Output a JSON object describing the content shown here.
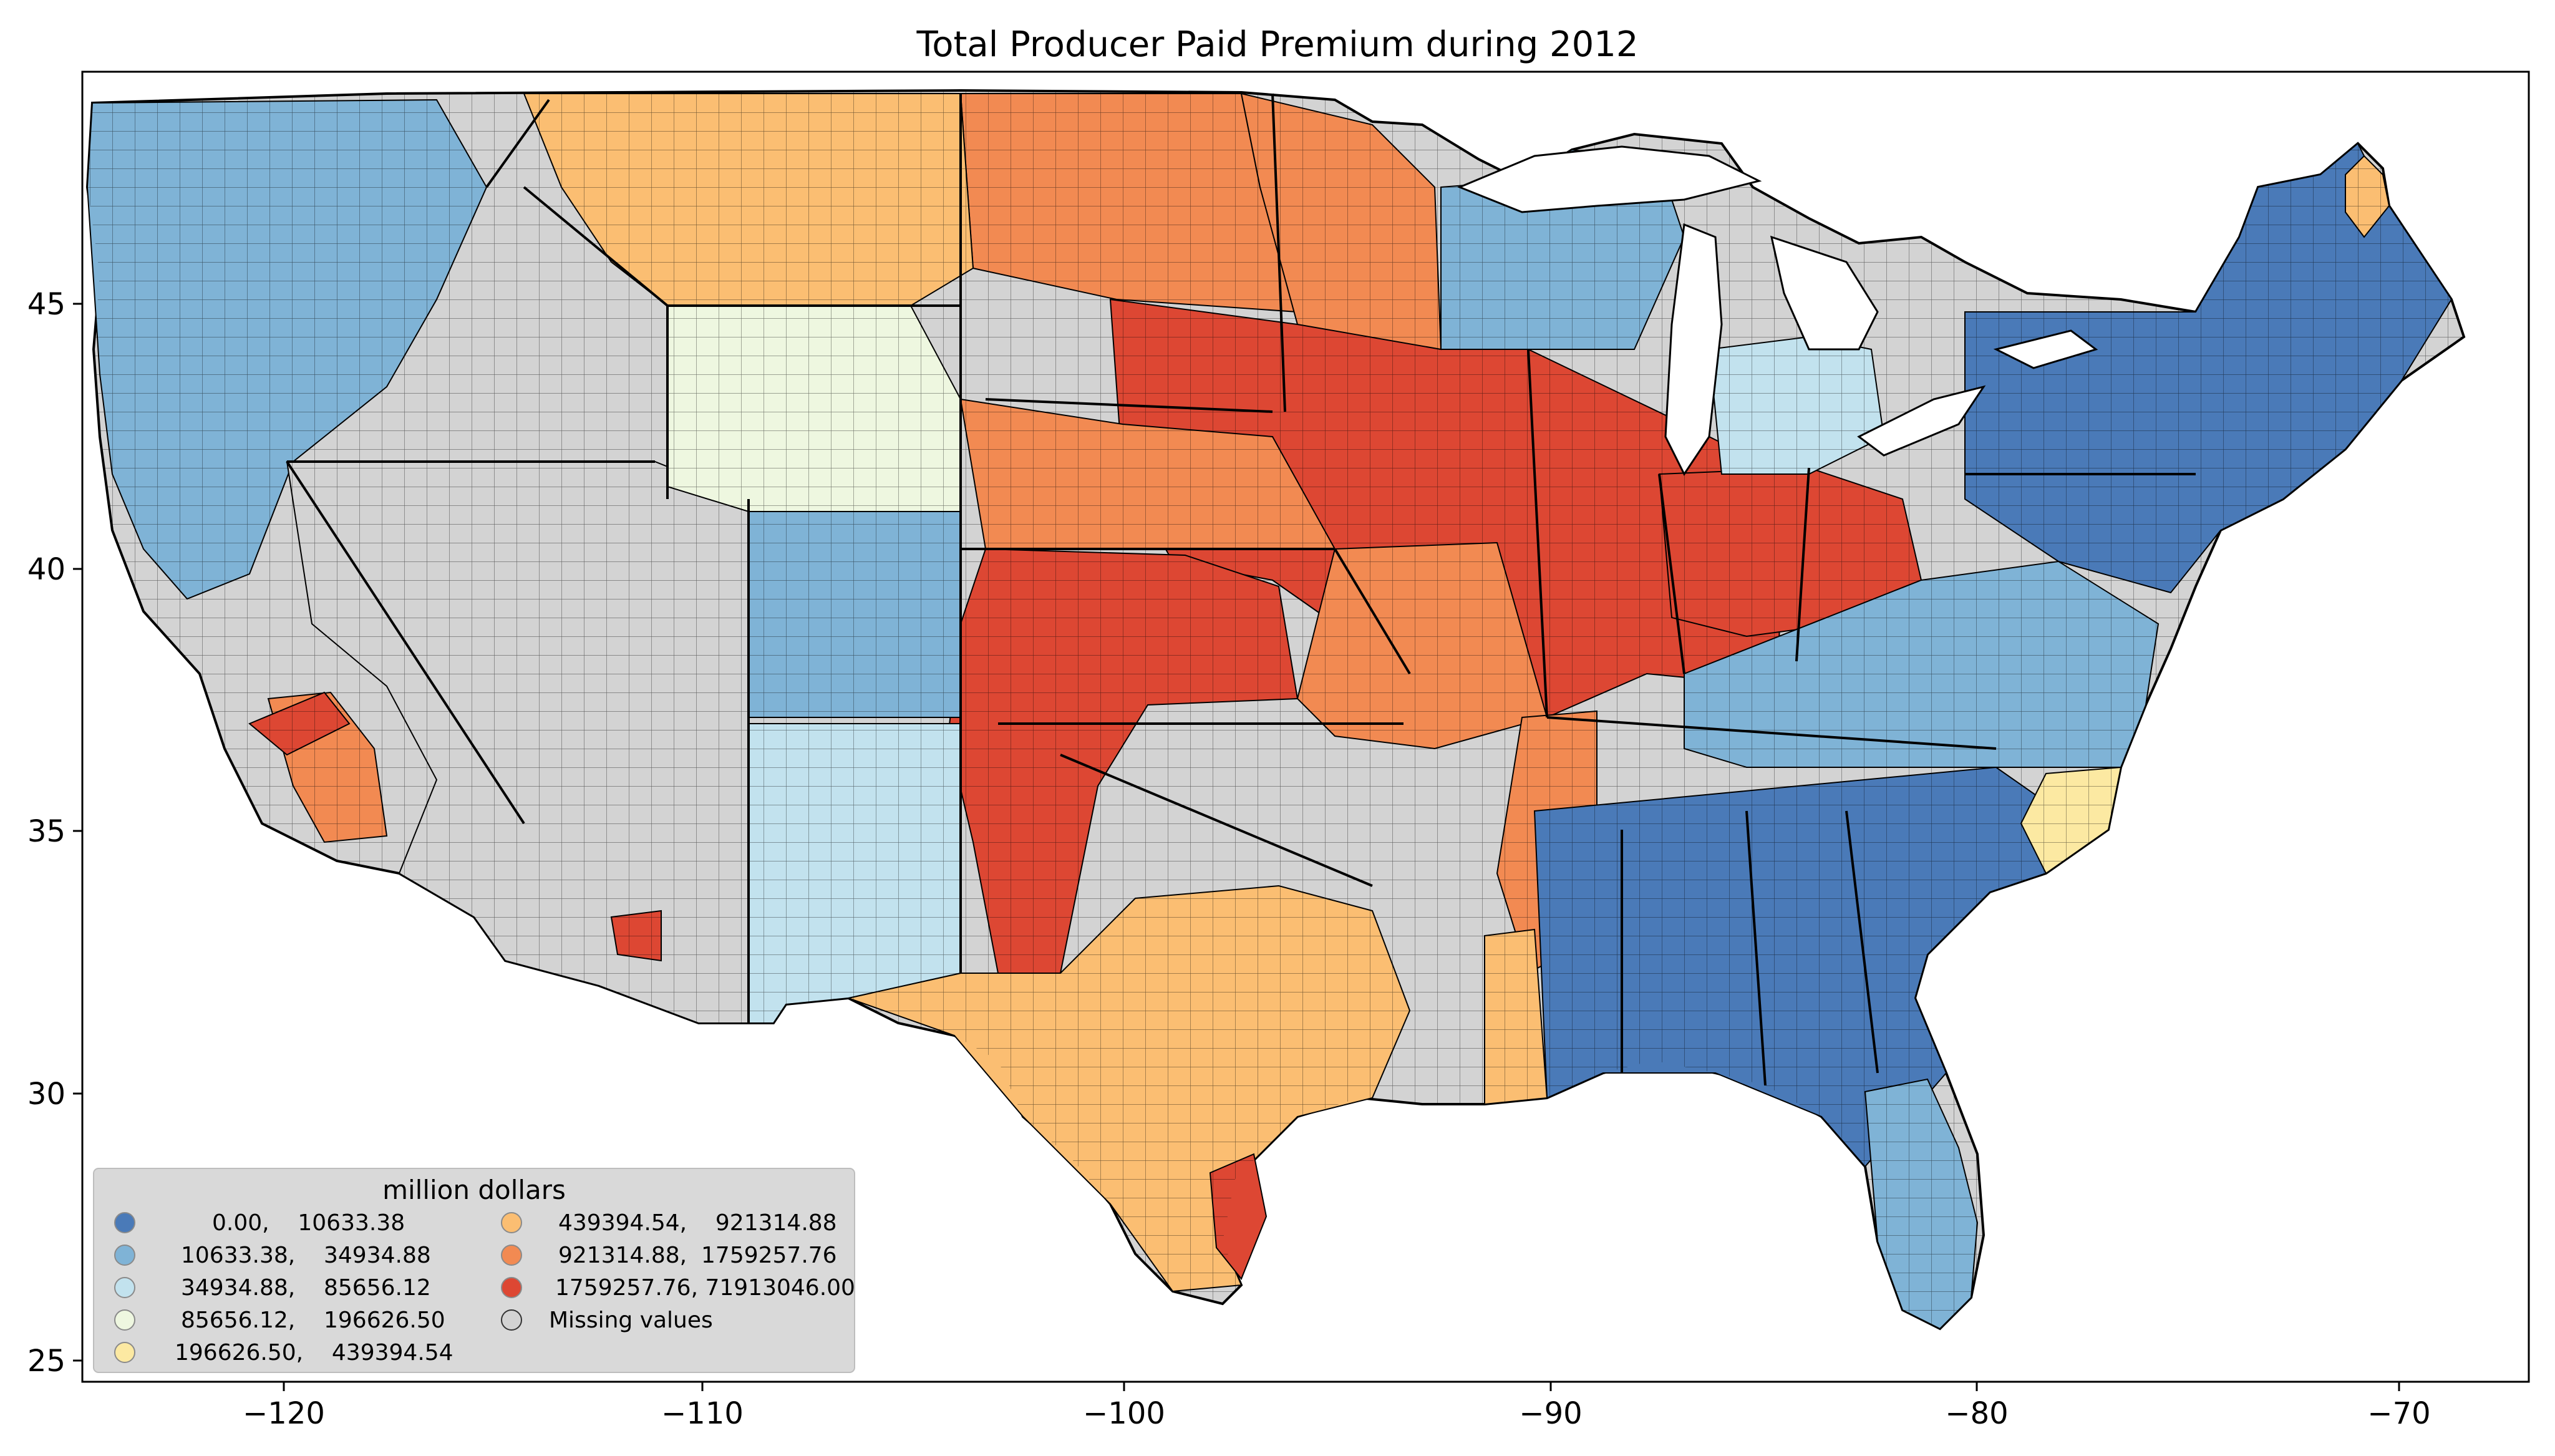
{
  "title": "Total Producer Paid Premium during 2012",
  "axes": {
    "x_ticks": [
      "−120",
      "−110",
      "−100",
      "−90",
      "−80",
      "−70"
    ],
    "y_ticks": [
      "25",
      "30",
      "35",
      "40",
      "45"
    ]
  },
  "legend": {
    "title": "million dollars",
    "items": [
      {
        "label": "0.00,    10633.38",
        "color": "#4a7ab8"
      },
      {
        "label": "10633.38,    34934.88",
        "color": "#7fb3d6"
      },
      {
        "label": "34934.88,    85656.12",
        "color": "#c2e2ee"
      },
      {
        "label": "85656.12,    196626.50",
        "color": "#eef7e0"
      },
      {
        "label": "196626.50,    439394.54",
        "color": "#fce9a2"
      },
      {
        "label": "439394.54,    921314.88",
        "color": "#fbbe72"
      },
      {
        "label": "921314.88,  1759257.76",
        "color": "#f28a52"
      },
      {
        "label": "1759257.76, 71913046.00",
        "color": "#dd4733"
      },
      {
        "label": "Missing values",
        "color": "#d3d3d3"
      }
    ]
  },
  "colors": {
    "missing": "#d3d3d3",
    "border": "#000000"
  }
}
